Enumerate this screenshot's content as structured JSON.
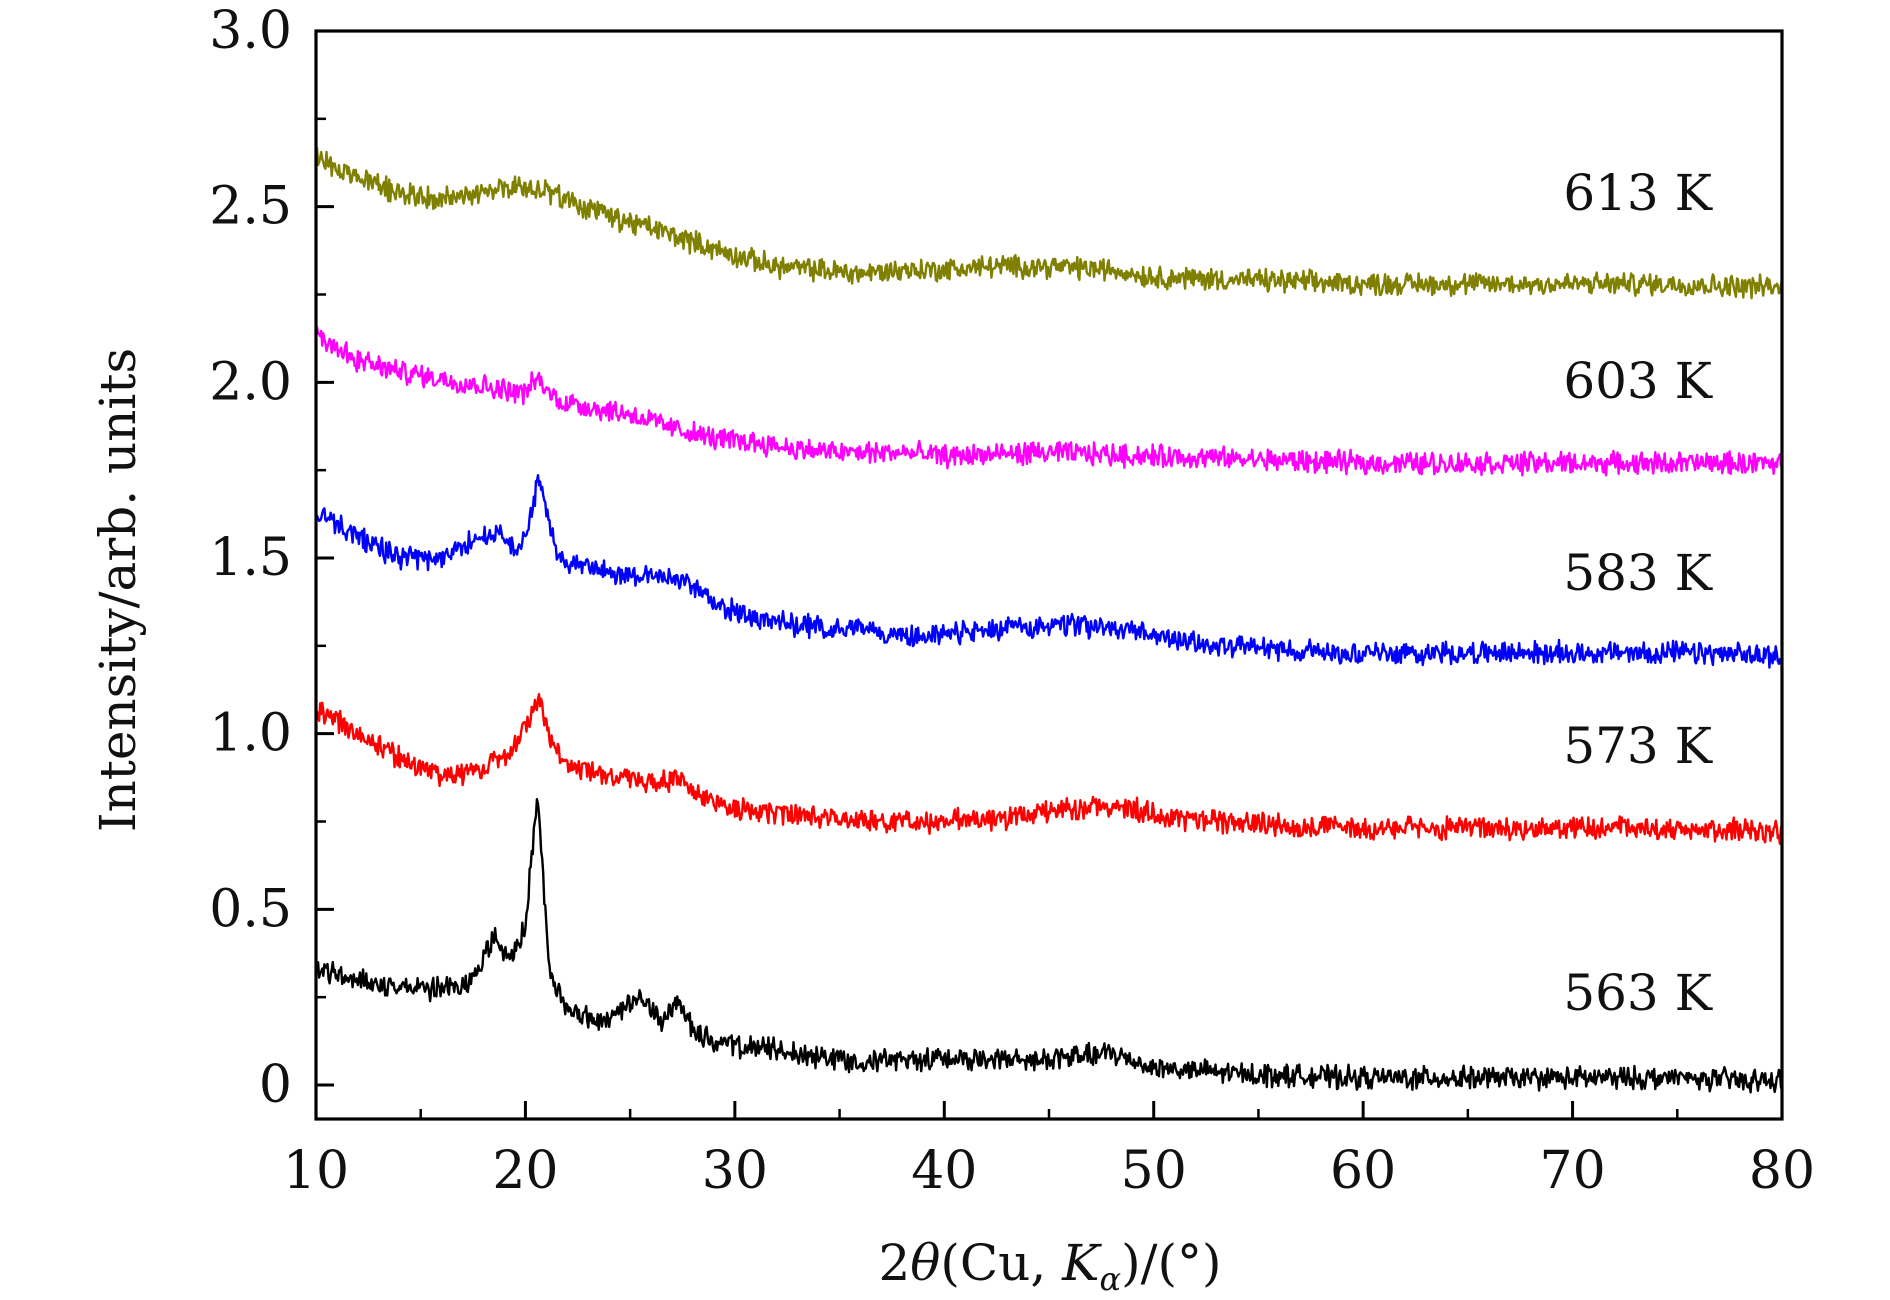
{
  "chart_data": {
    "type": "line",
    "title": "",
    "xlabel": "2θ(Cu, Kα)/(°)",
    "xlabel_parts": {
      "prefix": "2",
      "theta": "θ",
      "mid": "(Cu, ",
      "k": "K",
      "alpha": "α",
      "suffix": ")/(°)"
    },
    "ylabel": "Intensity/arb. units",
    "xlim": [
      10,
      80
    ],
    "ylim": [
      -0.1,
      3.0
    ],
    "xticks": [
      10,
      20,
      30,
      40,
      50,
      60,
      70,
      80
    ],
    "xtick_labels": [
      "10",
      "20",
      "30",
      "40",
      "50",
      "60",
      "70",
      "80"
    ],
    "yticks": [
      0,
      0.5,
      1.0,
      1.5,
      2.0,
      2.5,
      3.0
    ],
    "ytick_labels": [
      "0",
      "0.5",
      "1.0",
      "1.5",
      "2.0",
      "2.5",
      "3.0"
    ],
    "grid": false,
    "legend": "inline labels at right",
    "series": [
      {
        "name": "563 K",
        "color": "#000000",
        "noise": 0.025,
        "x": [
          10,
          12,
          14,
          16,
          17.5,
          18.5,
          19.3,
          20,
          20.4,
          20.6,
          20.8,
          21.2,
          22,
          23,
          24,
          25.5,
          26.5,
          27.3,
          28,
          29,
          30,
          32,
          34,
          36,
          38,
          40,
          42,
          44,
          46,
          48,
          50,
          52,
          55,
          60,
          65,
          70,
          75,
          80
        ],
        "y": [
          0.33,
          0.3,
          0.28,
          0.27,
          0.3,
          0.42,
          0.35,
          0.45,
          0.72,
          0.82,
          0.62,
          0.3,
          0.22,
          0.19,
          0.18,
          0.25,
          0.18,
          0.24,
          0.16,
          0.12,
          0.11,
          0.1,
          0.08,
          0.07,
          0.07,
          0.08,
          0.07,
          0.07,
          0.08,
          0.09,
          0.05,
          0.04,
          0.03,
          0.02,
          0.02,
          0.02,
          0.02,
          0.01
        ]
      },
      {
        "name": "573 K",
        "color": "#ff0000",
        "noise": 0.025,
        "x": [
          10,
          12,
          14,
          16,
          18,
          19.5,
          20.3,
          20.7,
          21.2,
          22,
          24,
          26,
          27.5,
          28.5,
          30,
          32,
          35,
          38,
          40,
          43,
          45,
          48,
          50,
          53,
          56,
          60,
          65,
          70,
          75,
          80
        ],
        "y": [
          1.07,
          1.0,
          0.93,
          0.88,
          0.9,
          0.96,
          1.06,
          1.1,
          0.98,
          0.91,
          0.88,
          0.86,
          0.87,
          0.82,
          0.79,
          0.77,
          0.76,
          0.75,
          0.75,
          0.76,
          0.78,
          0.8,
          0.77,
          0.75,
          0.74,
          0.73,
          0.73,
          0.73,
          0.73,
          0.72
        ]
      },
      {
        "name": "583 K",
        "color": "#0000ff",
        "noise": 0.025,
        "x": [
          10,
          12,
          14,
          16,
          17.5,
          18.7,
          19.6,
          20.2,
          20.6,
          21.0,
          21.6,
          22.5,
          24,
          26,
          27.5,
          29,
          31,
          34,
          36,
          38,
          40,
          43,
          46,
          48,
          50,
          53,
          56,
          60,
          65,
          70,
          75,
          80
        ],
        "y": [
          1.63,
          1.56,
          1.5,
          1.5,
          1.55,
          1.57,
          1.52,
          1.6,
          1.72,
          1.64,
          1.5,
          1.48,
          1.46,
          1.45,
          1.44,
          1.37,
          1.33,
          1.3,
          1.3,
          1.28,
          1.28,
          1.3,
          1.31,
          1.3,
          1.28,
          1.25,
          1.24,
          1.23,
          1.23,
          1.23,
          1.23,
          1.22
        ]
      },
      {
        "name": "603 K",
        "color": "#ff00ff",
        "noise": 0.025,
        "x": [
          10,
          12,
          14,
          16,
          18,
          20,
          20.5,
          21.5,
          23,
          25,
          27,
          29,
          31,
          33,
          35,
          38,
          40,
          45,
          50,
          55,
          60,
          65,
          70,
          75,
          80
        ],
        "y": [
          2.14,
          2.06,
          2.03,
          2.01,
          1.99,
          1.97,
          2.01,
          1.95,
          1.93,
          1.91,
          1.87,
          1.84,
          1.83,
          1.81,
          1.8,
          1.8,
          1.79,
          1.8,
          1.79,
          1.78,
          1.77,
          1.77,
          1.77,
          1.77,
          1.77
        ]
      },
      {
        "name": "613 K",
        "color": "#808000",
        "noise": 0.025,
        "x": [
          10,
          12,
          14,
          16,
          18,
          20,
          21,
          22,
          24,
          26,
          28,
          30,
          32,
          34,
          36,
          38,
          40,
          42,
          45,
          48,
          50,
          55,
          60,
          65,
          70,
          75,
          80
        ],
        "y": [
          2.64,
          2.58,
          2.54,
          2.52,
          2.54,
          2.56,
          2.54,
          2.52,
          2.47,
          2.44,
          2.4,
          2.36,
          2.33,
          2.32,
          2.31,
          2.32,
          2.32,
          2.33,
          2.33,
          2.32,
          2.3,
          2.29,
          2.28,
          2.28,
          2.28,
          2.28,
          2.27
        ]
      }
    ]
  }
}
